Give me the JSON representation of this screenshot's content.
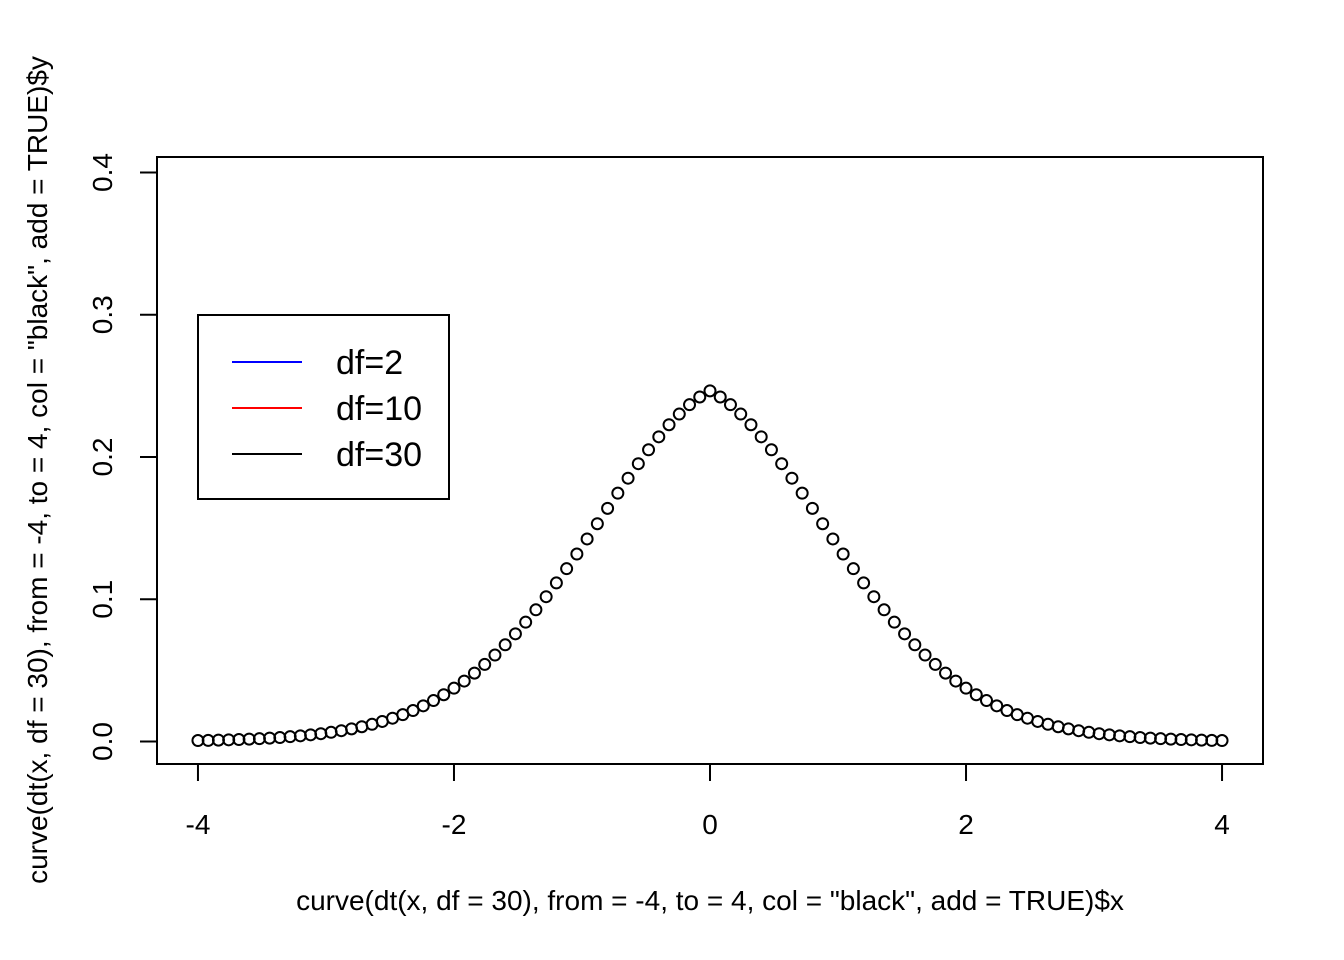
{
  "chart_data": {
    "type": "scatter",
    "xlabel": "curve(dt(x, df = 30), from = -4, to = 4, col = \"black\", add = TRUE)$x",
    "ylabel": "curve(dt(x, df = 30), from = -4, to = 4, col = \"black\", add = TRUE)$y",
    "xlim": [
      -4.32,
      4.32
    ],
    "ylim": [
      -0.0158,
      0.4109
    ],
    "x_ticks": [
      -4,
      -2,
      0,
      2,
      4
    ],
    "y_ticks": [
      0.0,
      0.1,
      0.2,
      0.3,
      0.4
    ],
    "x_tick_labels": [
      "-4",
      "-2",
      "0",
      "2",
      "4"
    ],
    "y_tick_labels": [
      "0.0",
      "0.1",
      "0.2",
      "0.3",
      "0.4"
    ],
    "grid": false,
    "legend": {
      "placement": "left",
      "entries": [
        {
          "label": "df=2",
          "color": "#0000ff"
        },
        {
          "label": "df=10",
          "color": "#ff0000"
        },
        {
          "label": "df=30",
          "color": "#000000"
        }
      ]
    },
    "series": [
      {
        "color": "#000000",
        "marker": "open-circle",
        "x": [
          -4.0,
          -3.92,
          -3.84,
          -3.76,
          -3.68,
          -3.6,
          -3.52,
          -3.44,
          -3.36,
          -3.28,
          -3.2,
          -3.12,
          -3.04,
          -2.96,
          -2.88,
          -2.8,
          -2.72,
          -2.64,
          -2.56,
          -2.48,
          -2.4,
          -2.32,
          -2.24,
          -2.16,
          -2.08,
          -2.0,
          -1.92,
          -1.84,
          -1.76,
          -1.68,
          -1.6,
          -1.52,
          -1.44,
          -1.36,
          -1.28,
          -1.2,
          -1.12,
          -1.04,
          -0.96,
          -0.88,
          -0.8,
          -0.72,
          -0.64,
          -0.56,
          -0.48,
          -0.4,
          -0.32,
          -0.24,
          -0.16,
          -0.08,
          0.0,
          0.08,
          0.16,
          0.24,
          0.32,
          0.4,
          0.48,
          0.56,
          0.64,
          0.72,
          0.8,
          0.88,
          0.96,
          1.04,
          1.12,
          1.2,
          1.28,
          1.36,
          1.44,
          1.52,
          1.6,
          1.68,
          1.76,
          1.84,
          1.92,
          2.0,
          2.08,
          2.16,
          2.24,
          2.32,
          2.4,
          2.48,
          2.56,
          2.64,
          2.72,
          2.8,
          2.88,
          2.96,
          3.04,
          3.12,
          3.2,
          3.28,
          3.36,
          3.44,
          3.52,
          3.6,
          3.68,
          3.76,
          3.84,
          3.92,
          4.0
        ],
        "y": [
          0.0007,
          0.0008,
          0.001,
          0.0012,
          0.0014,
          0.0017,
          0.002,
          0.0024,
          0.0028,
          0.0034,
          0.004,
          0.0047,
          0.0055,
          0.0065,
          0.0076,
          0.0089,
          0.0104,
          0.0121,
          0.0141,
          0.0164,
          0.0189,
          0.0218,
          0.0251,
          0.0288,
          0.0329,
          0.0375,
          0.0425,
          0.0481,
          0.0542,
          0.0608,
          0.068,
          0.0757,
          0.0839,
          0.0926,
          0.1018,
          0.1115,
          0.1215,
          0.1318,
          0.1424,
          0.1531,
          0.1639,
          0.1746,
          0.1851,
          0.1953,
          0.2051,
          0.2142,
          0.2227,
          0.2302,
          0.2368,
          0.2422,
          0.2465,
          0.2422,
          0.2368,
          0.2302,
          0.2227,
          0.2142,
          0.2051,
          0.1953,
          0.1851,
          0.1746,
          0.1639,
          0.1531,
          0.1424,
          0.1318,
          0.1215,
          0.1115,
          0.1018,
          0.0926,
          0.0839,
          0.0757,
          0.068,
          0.0608,
          0.0542,
          0.0481,
          0.0425,
          0.0375,
          0.0329,
          0.0288,
          0.0251,
          0.0218,
          0.0189,
          0.0164,
          0.0141,
          0.0121,
          0.0104,
          0.0089,
          0.0076,
          0.0065,
          0.0055,
          0.0047,
          0.004,
          0.0034,
          0.0028,
          0.0024,
          0.002,
          0.0017,
          0.0014,
          0.0012,
          0.001,
          0.0008,
          0.0007
        ]
      }
    ]
  }
}
